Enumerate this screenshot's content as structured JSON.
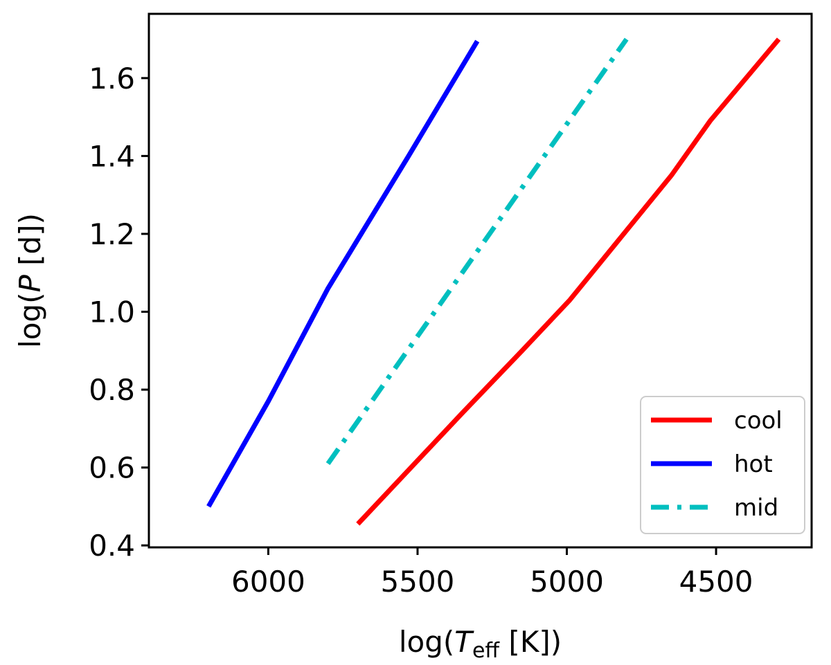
{
  "chart_data": {
    "type": "line",
    "title": "",
    "xlabel": "log(T_eff [K])",
    "xlabel_parts": {
      "prefix": "log(",
      "italic": "T",
      "sub": "eff",
      "suffix": " [K])"
    },
    "ylabel": "log(P [d])",
    "ylabel_parts": {
      "prefix": "log(",
      "italic": "P",
      "suffix": " [d])"
    },
    "x_inverted": true,
    "xlim": [
      6400,
      4180
    ],
    "ylim": [
      0.395,
      1.765
    ],
    "xticks": [
      6000,
      5500,
      5000,
      4500
    ],
    "xtick_labels": [
      "6000",
      "5500",
      "5000",
      "4500"
    ],
    "yticks": [
      0.4,
      0.6,
      0.8,
      1.0,
      1.2,
      1.4,
      1.6
    ],
    "ytick_labels": [
      "0.4",
      "0.6",
      "0.8",
      "1.0",
      "1.2",
      "1.4",
      "1.6"
    ],
    "grid": false,
    "legend_position": "bottom-right",
    "series": [
      {
        "name": "cool",
        "color": "#ff0000",
        "style": "solid",
        "x": [
          5700,
          5350,
          5150,
          4990,
          4820,
          4650,
          4520,
          4290
        ],
        "y": [
          0.455,
          0.74,
          0.9,
          1.03,
          1.19,
          1.35,
          1.49,
          1.7
        ]
      },
      {
        "name": "hot",
        "color": "#0000ff",
        "style": "solid",
        "x": [
          6200,
          6000,
          5800,
          5530,
          5300
        ],
        "y": [
          0.5,
          0.77,
          1.06,
          1.4,
          1.695
        ]
      },
      {
        "name": "mid",
        "color": "#00bfbf",
        "style": "dashdot",
        "x": [
          5800,
          4800
        ],
        "y": [
          0.61,
          1.7
        ]
      }
    ]
  }
}
